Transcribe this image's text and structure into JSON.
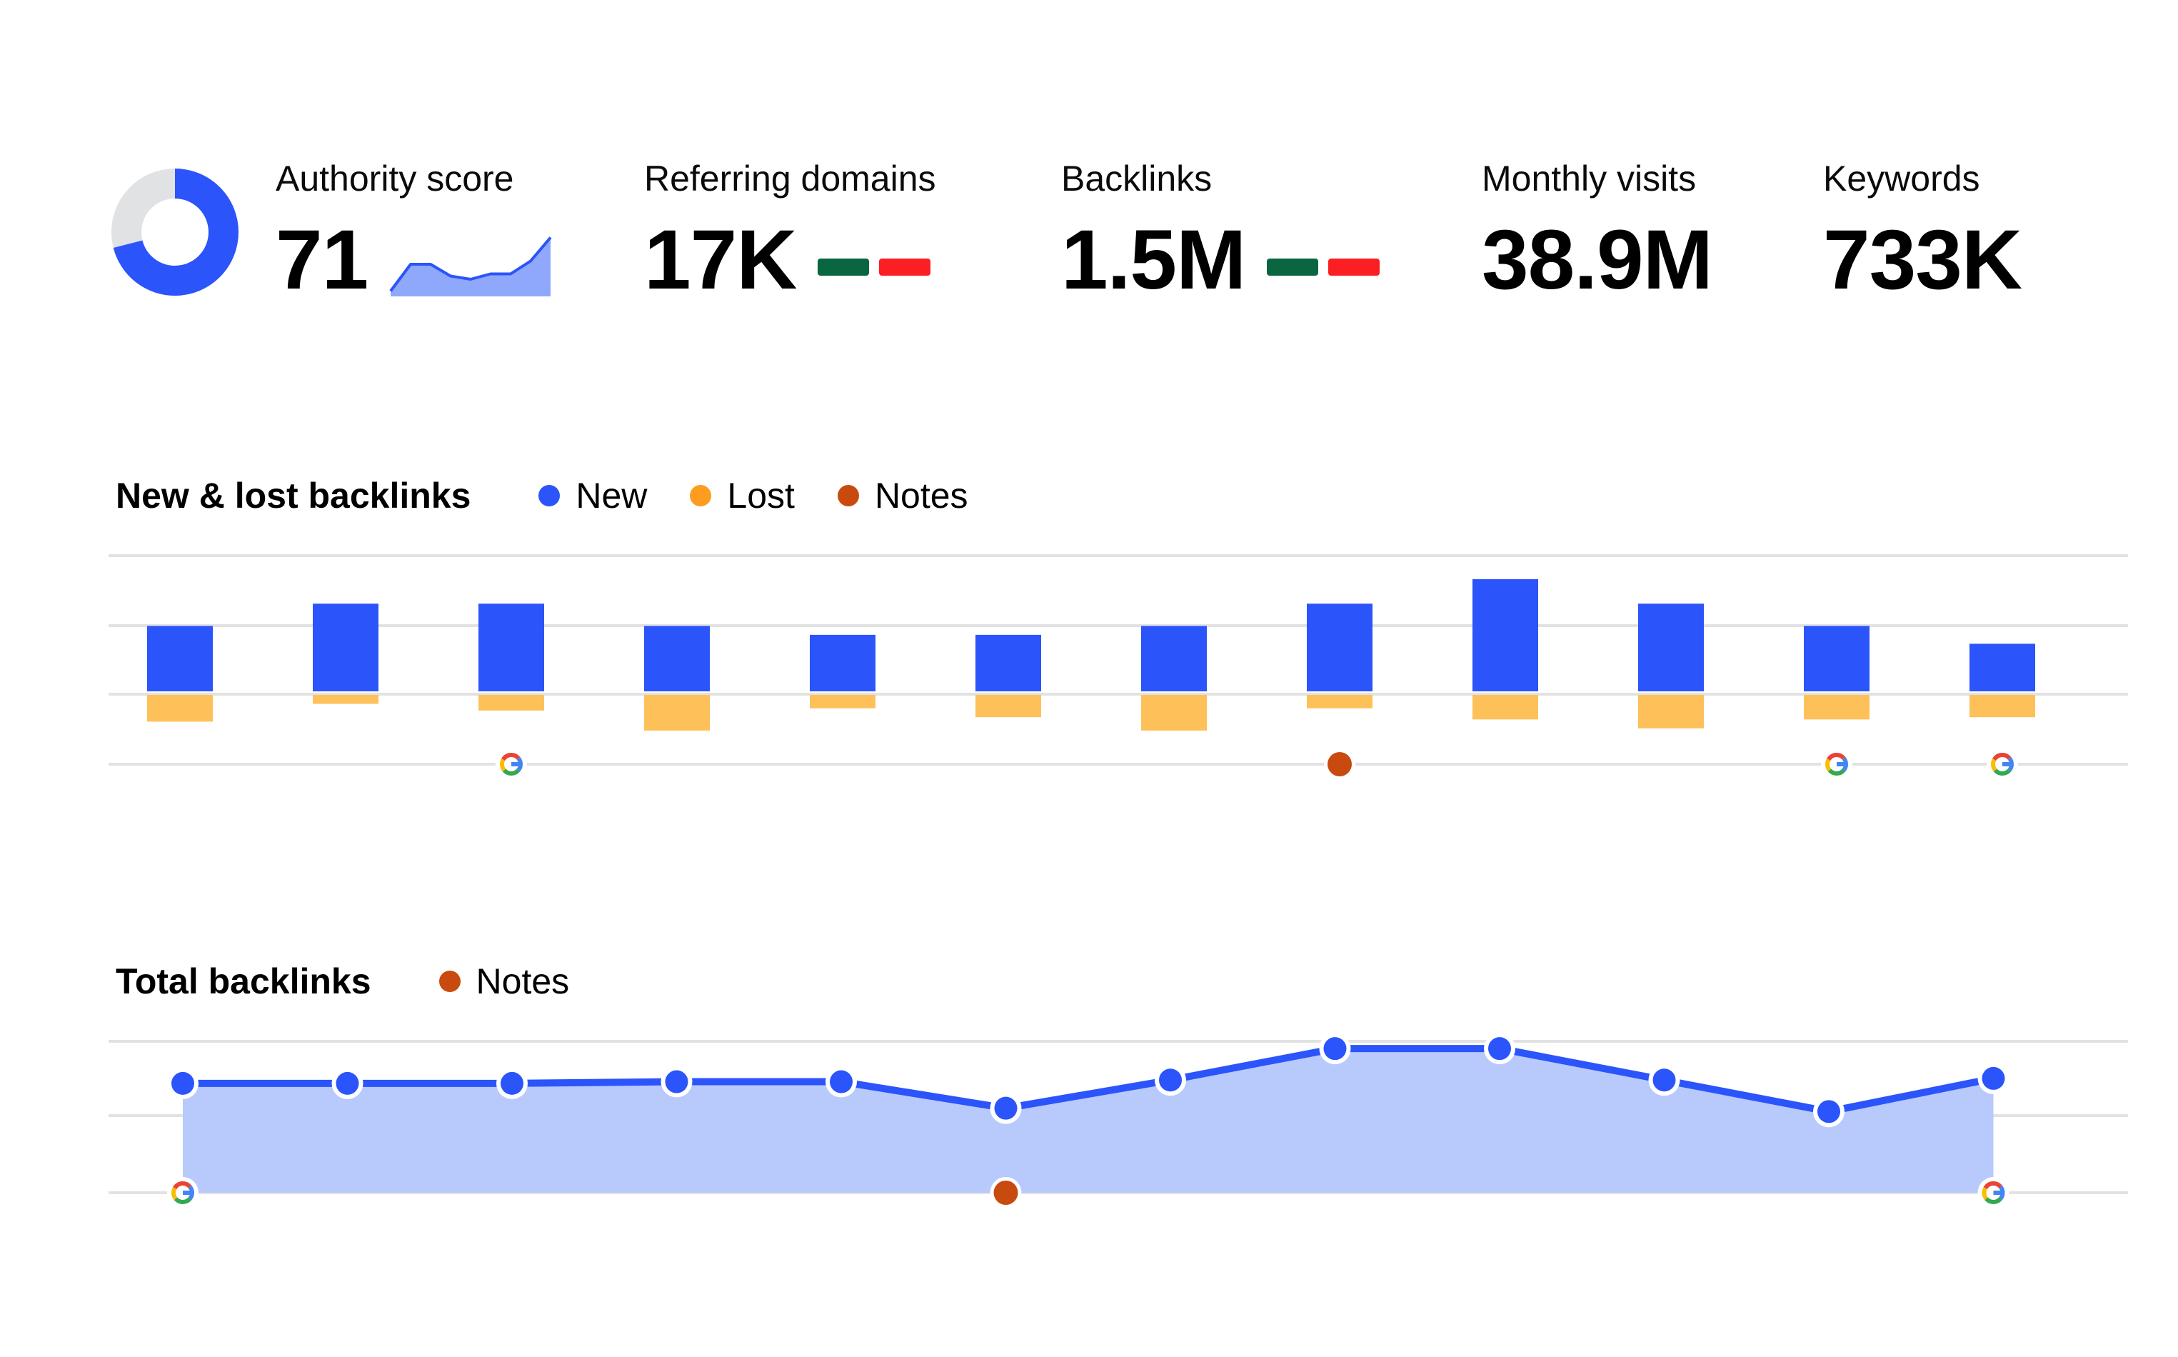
{
  "colors": {
    "blue": "#2b54fa",
    "blue_light": "#b8c9fc",
    "orange": "#fec15a",
    "orange_dot": "#fe9c20",
    "notes": "#c94a0f",
    "green": "#096641",
    "red": "#fb1f24",
    "grid": "#e2e2e2",
    "donut_track": "#e1e2e4"
  },
  "kpis": {
    "authority": {
      "label": "Authority score",
      "value": "71",
      "score": 71,
      "spark": [
        5,
        30,
        30,
        19,
        16,
        21,
        21,
        33,
        55
      ]
    },
    "referring": {
      "label": "Referring domains",
      "value": "17K"
    },
    "backlinks": {
      "label": "Backlinks",
      "value": "1.5M"
    },
    "visits": {
      "label": "Monthly visits",
      "value": "38.9M"
    },
    "keywords": {
      "label": "Keywords",
      "value": "733K"
    }
  },
  "new_lost": {
    "title": "New & lost backlinks",
    "legend": {
      "new": "New",
      "lost": "Lost",
      "notes": "Notes"
    }
  },
  "total": {
    "title": "Total backlinks",
    "legend": {
      "notes": "Notes"
    }
  },
  "chart_data": [
    {
      "type": "bar",
      "title": "New & lost backlinks",
      "categories": [
        "1",
        "2",
        "3",
        "4",
        "5",
        "6",
        "7",
        "8",
        "9",
        "10",
        "11",
        "12"
      ],
      "series": [
        {
          "name": "New",
          "values": [
            60,
            80,
            80,
            60,
            52,
            52,
            60,
            80,
            102,
            80,
            60,
            44
          ]
        },
        {
          "name": "Lost",
          "values": [
            -24,
            -8,
            -14,
            -32,
            -12,
            -20,
            -32,
            -12,
            -22,
            -30,
            -22,
            -20
          ]
        }
      ],
      "ylim": [
        -50,
        100
      ],
      "grid": true,
      "markers": [
        {
          "category": 3,
          "kind": "google"
        },
        {
          "category": 8,
          "kind": "note"
        },
        {
          "category": 11,
          "kind": "google"
        },
        {
          "category": 12,
          "kind": "google"
        }
      ]
    },
    {
      "type": "area",
      "title": "Total backlinks",
      "x": [
        1,
        2,
        3,
        4,
        5,
        6,
        7,
        8,
        9,
        10,
        11,
        12
      ],
      "series": [
        {
          "values": [
            66,
            66,
            66,
            67,
            67,
            51,
            68,
            87,
            87,
            68,
            49,
            69
          ]
        }
      ],
      "ylim": [
        0,
        110
      ],
      "grid": true,
      "markers": [
        {
          "point": 1,
          "kind": "google"
        },
        {
          "point": 6,
          "kind": "note"
        },
        {
          "point": 12,
          "kind": "google"
        }
      ]
    }
  ]
}
